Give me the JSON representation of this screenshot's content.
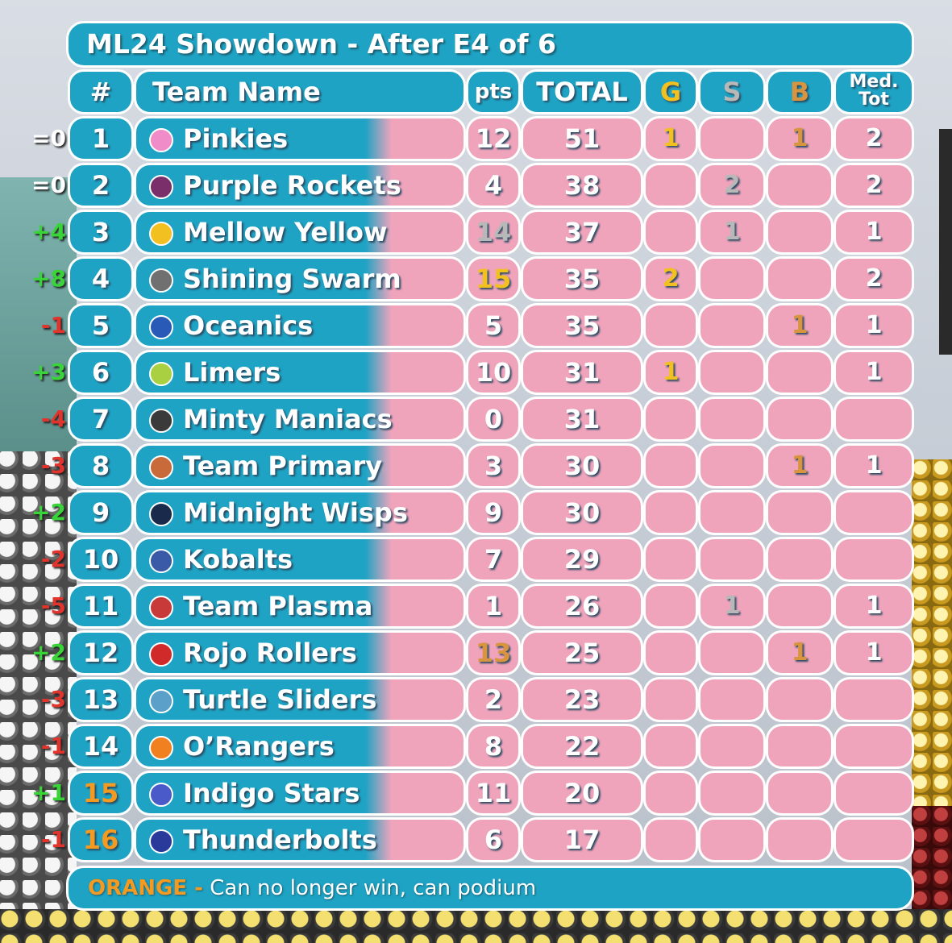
{
  "title": "ML24 Showdown - After E4 of 6",
  "header": {
    "num": "#",
    "team_name": "Team Name",
    "pts": "pts",
    "total": "TOTAL",
    "g": "G",
    "s": "S",
    "b": "B",
    "med_line1": "Med.",
    "med_line2": "Tot"
  },
  "colors": {
    "gold": "#f2c020",
    "silver": "#b8b8b8",
    "bronze": "#d99440",
    "orange": "#f59a20",
    "up": "#39d437",
    "down": "#e0342c"
  },
  "rows": [
    {
      "change": "=0",
      "dir": "same",
      "rank": "1",
      "team": "Pinkies",
      "marble": "#f08cc8",
      "pts": "12",
      "pts_color": "",
      "total": "51",
      "g": "1",
      "s": "",
      "b": "1",
      "med": "2",
      "rank_color": ""
    },
    {
      "change": "=0",
      "dir": "same",
      "rank": "2",
      "team": "Purple Rockets",
      "marble": "#7a2f6a",
      "pts": "4",
      "pts_color": "",
      "total": "38",
      "g": "",
      "s": "2",
      "b": "",
      "med": "2",
      "rank_color": ""
    },
    {
      "change": "+4",
      "dir": "up",
      "rank": "3",
      "team": "Mellow Yellow",
      "marble": "#f2c020",
      "pts": "14",
      "pts_color": "silver",
      "total": "37",
      "g": "",
      "s": "1",
      "b": "",
      "med": "1",
      "rank_color": ""
    },
    {
      "change": "+8",
      "dir": "up",
      "rank": "4",
      "team": "Shining Swarm",
      "marble": "#707070",
      "pts": "15",
      "pts_color": "gold",
      "total": "35",
      "g": "2",
      "s": "",
      "b": "",
      "med": "2",
      "rank_color": ""
    },
    {
      "change": "-1",
      "dir": "down",
      "rank": "5",
      "team": "Oceanics",
      "marble": "#2a5ab8",
      "pts": "5",
      "pts_color": "",
      "total": "35",
      "g": "",
      "s": "",
      "b": "1",
      "med": "1",
      "rank_color": ""
    },
    {
      "change": "+3",
      "dir": "up",
      "rank": "6",
      "team": "Limers",
      "marble": "#a8d040",
      "pts": "10",
      "pts_color": "",
      "total": "31",
      "g": "1",
      "s": "",
      "b": "",
      "med": "1",
      "rank_color": ""
    },
    {
      "change": "-4",
      "dir": "down",
      "rank": "7",
      "team": "Minty Maniacs",
      "marble": "#3a3a3a",
      "pts": "0",
      "pts_color": "",
      "total": "31",
      "g": "",
      "s": "",
      "b": "",
      "med": "",
      "rank_color": ""
    },
    {
      "change": "-3",
      "dir": "down",
      "rank": "8",
      "team": "Team Primary",
      "marble": "#c86a3a",
      "pts": "3",
      "pts_color": "",
      "total": "30",
      "g": "",
      "s": "",
      "b": "1",
      "med": "1",
      "rank_color": ""
    },
    {
      "change": "+2",
      "dir": "up",
      "rank": "9",
      "team": "Midnight Wisps",
      "marble": "#1a2a4a",
      "pts": "9",
      "pts_color": "",
      "total": "30",
      "g": "",
      "s": "",
      "b": "",
      "med": "",
      "rank_color": ""
    },
    {
      "change": "-2",
      "dir": "down",
      "rank": "10",
      "team": "Kobalts",
      "marble": "#3a5aa8",
      "pts": "7",
      "pts_color": "",
      "total": "29",
      "g": "",
      "s": "",
      "b": "",
      "med": "",
      "rank_color": ""
    },
    {
      "change": "-5",
      "dir": "down",
      "rank": "11",
      "team": "Team Plasma",
      "marble": "#c83a3a",
      "pts": "1",
      "pts_color": "",
      "total": "26",
      "g": "",
      "s": "1",
      "b": "",
      "med": "1",
      "rank_color": ""
    },
    {
      "change": "+2",
      "dir": "up",
      "rank": "12",
      "team": "Rojo Rollers",
      "marble": "#d02a2a",
      "pts": "13",
      "pts_color": "bronze",
      "total": "25",
      "g": "",
      "s": "",
      "b": "1",
      "med": "1",
      "rank_color": ""
    },
    {
      "change": "-3",
      "dir": "down",
      "rank": "13",
      "team": "Turtle Sliders",
      "marble": "#5aa0c8",
      "pts": "2",
      "pts_color": "",
      "total": "23",
      "g": "",
      "s": "",
      "b": "",
      "med": "",
      "rank_color": ""
    },
    {
      "change": "-1",
      "dir": "down",
      "rank": "14",
      "team": "O’Rangers",
      "marble": "#f08020",
      "pts": "8",
      "pts_color": "",
      "total": "22",
      "g": "",
      "s": "",
      "b": "",
      "med": "",
      "rank_color": ""
    },
    {
      "change": "+1",
      "dir": "up",
      "rank": "15",
      "team": "Indigo Stars",
      "marble": "#4a5ac8",
      "pts": "11",
      "pts_color": "",
      "total": "20",
      "g": "",
      "s": "",
      "b": "",
      "med": "",
      "rank_color": "orange"
    },
    {
      "change": "-1",
      "dir": "down",
      "rank": "16",
      "team": "Thunderbolts",
      "marble": "#2a3a9a",
      "pts": "6",
      "pts_color": "",
      "total": "17",
      "g": "",
      "s": "",
      "b": "",
      "med": "",
      "rank_color": "orange"
    }
  ],
  "footer": {
    "label": "ORANGE -",
    "text": "Can no longer win, can podium"
  }
}
